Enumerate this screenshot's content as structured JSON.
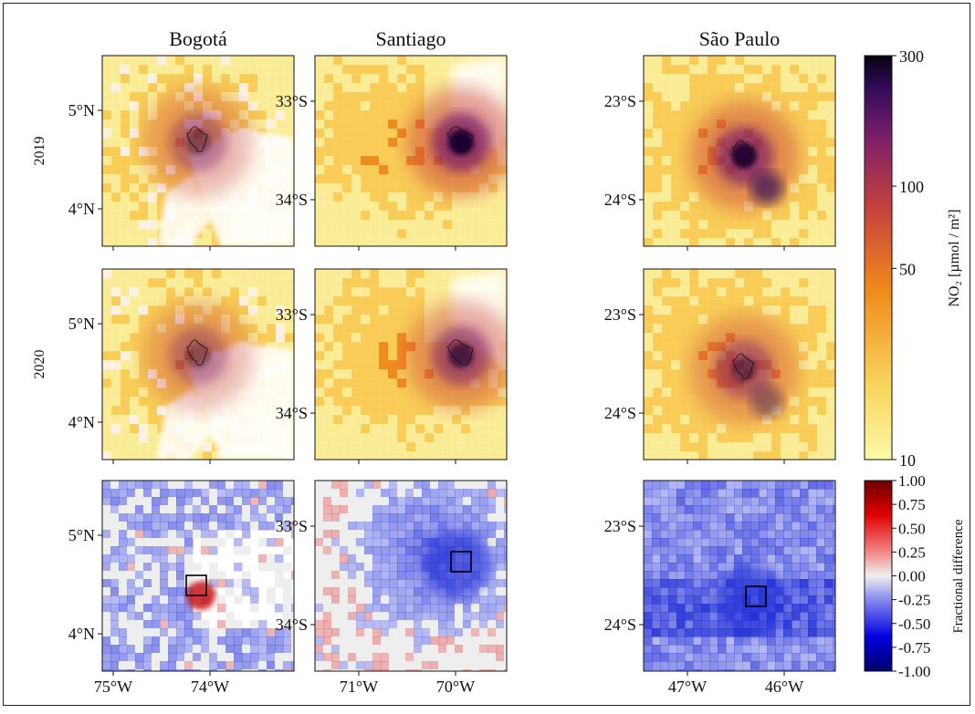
{
  "chart_data": {
    "type": "heatmap",
    "columns": [
      {
        "city": "Bogotá",
        "lat_ticks": [
          "5°N",
          "4°N"
        ],
        "lon_ticks": [
          "75°W",
          "74°W"
        ]
      },
      {
        "city": "Santiago",
        "lat_ticks": [
          "33°S",
          "34°S"
        ],
        "lon_ticks": [
          "71°W",
          "70°W"
        ]
      },
      {
        "city": "São Paulo",
        "lat_ticks": [
          "23°S",
          "24°S"
        ],
        "lon_ticks": [
          "47°W",
          "46°W"
        ]
      }
    ],
    "rows": [
      "2019",
      "2020",
      ""
    ],
    "no2_colorbar": {
      "label": "NO₂ [µmol / m²]",
      "scale": "log",
      "range": [
        10,
        300
      ],
      "ticks": [
        "300",
        "100",
        "50",
        "10"
      ],
      "colormap": "inferno-reversed"
    },
    "diff_colorbar": {
      "label": "Fractional difference",
      "range": [
        -1.0,
        1.0
      ],
      "ticks": [
        "1.00",
        "0.75",
        "0.50",
        "0.25",
        "0.00",
        "-0.25",
        "-0.50",
        "-0.75",
        "-1.00"
      ],
      "colormap": "seismic"
    },
    "hotspots": [
      {
        "city": "Bogotá",
        "2019_peak": 90,
        "2020_peak": 80,
        "diff_center": 0.6
      },
      {
        "city": "Santiago",
        "2019_peak": 300,
        "2020_peak": 180,
        "diff_center": -0.4
      },
      {
        "city": "São Paulo",
        "2019_peak": 250,
        "2020_peak": 120,
        "diff_center": -0.5
      }
    ]
  },
  "colors": {
    "low": "#fbf5a0",
    "mid": "#f29a2e",
    "high": "#5d126e",
    "max": "#0a0316",
    "diff_neg": "#1f2bd6",
    "diff_pos": "#c81818",
    "diff_zero": "#eeeeee"
  }
}
